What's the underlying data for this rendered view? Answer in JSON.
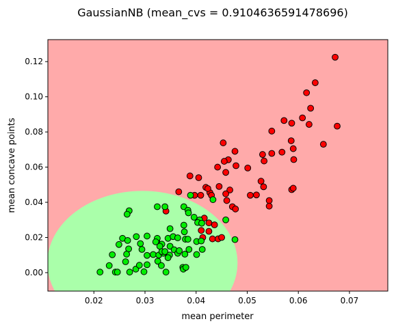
{
  "chart_data": {
    "type": "scatter",
    "title": "GaussianNB (mean_cvs = 0.9104636591478696)",
    "xlabel": "mean perimeter",
    "ylabel": "mean concave points",
    "xlim": [
      0.011,
      0.0775
    ],
    "ylim": [
      -0.0105,
      0.1325
    ],
    "xticks": [
      0.02,
      0.03,
      0.04,
      0.05,
      0.06,
      0.07
    ],
    "xtick_labels": [
      "0.02",
      "0.03",
      "0.04",
      "0.05",
      "0.06",
      "0.07"
    ],
    "yticks": [
      0.0,
      0.02,
      0.04,
      0.06,
      0.08,
      0.1,
      0.12
    ],
    "ytick_labels": [
      "0.00",
      "0.02",
      "0.04",
      "0.06",
      "0.08",
      "0.10",
      "0.12"
    ],
    "grid": false,
    "decision_region": {
      "background_color": "#ffaaaa",
      "region_color": "#aaffaa",
      "ellipse_center": [
        0.0295,
        0.0055
      ],
      "ellipse_semi_axes": [
        0.0186,
        0.041
      ]
    },
    "series": [
      {
        "color": "#ff0000",
        "edge_color": "#000000",
        "points": [
          [
            0.0672,
            0.1225
          ],
          [
            0.0633,
            0.108
          ],
          [
            0.0616,
            0.1023
          ],
          [
            0.0624,
            0.0935
          ],
          [
            0.0608,
            0.088
          ],
          [
            0.0621,
            0.0843
          ],
          [
            0.0676,
            0.0833
          ],
          [
            0.0572,
            0.0865
          ],
          [
            0.0587,
            0.085
          ],
          [
            0.0548,
            0.0805
          ],
          [
            0.0649,
            0.073
          ],
          [
            0.0586,
            0.075
          ],
          [
            0.059,
            0.0705
          ],
          [
            0.0568,
            0.0685
          ],
          [
            0.0548,
            0.0678
          ],
          [
            0.053,
            0.0672
          ],
          [
            0.0533,
            0.0635
          ],
          [
            0.0591,
            0.0643
          ],
          [
            0.0476,
            0.069
          ],
          [
            0.0453,
            0.0738
          ],
          [
            0.0463,
            0.0642
          ],
          [
            0.0455,
            0.0633
          ],
          [
            0.0478,
            0.0608
          ],
          [
            0.0442,
            0.06
          ],
          [
            0.0458,
            0.057
          ],
          [
            0.0501,
            0.0595
          ],
          [
            0.0527,
            0.052
          ],
          [
            0.0532,
            0.0488
          ],
          [
            0.0543,
            0.041
          ],
          [
            0.0543,
            0.0378
          ],
          [
            0.0587,
            0.0472
          ],
          [
            0.059,
            0.048
          ],
          [
            0.0506,
            0.044
          ],
          [
            0.0518,
            0.0442
          ],
          [
            0.0466,
            0.047
          ],
          [
            0.0445,
            0.049
          ],
          [
            0.0458,
            0.0448
          ],
          [
            0.046,
            0.041
          ],
          [
            0.0427,
            0.0455
          ],
          [
            0.0419,
            0.0485
          ],
          [
            0.043,
            0.044
          ],
          [
            0.0405,
            0.054
          ],
          [
            0.0388,
            0.055
          ],
          [
            0.0366,
            0.046
          ],
          [
            0.0397,
            0.044
          ],
          [
            0.0409,
            0.044
          ],
          [
            0.0423,
            0.0478
          ],
          [
            0.0471,
            0.0375
          ],
          [
            0.0477,
            0.0362
          ],
          [
            0.0416,
            0.031
          ],
          [
            0.0425,
            0.0283
          ],
          [
            0.0436,
            0.0272
          ],
          [
            0.041,
            0.024
          ],
          [
            0.0425,
            0.0235
          ],
          [
            0.0413,
            0.02
          ],
          [
            0.0432,
            0.0192
          ],
          [
            0.0443,
            0.0192
          ],
          [
            0.045,
            0.02
          ],
          [
            0.0341,
            0.035
          ]
        ]
      },
      {
        "color": "#00ee00",
        "edge_color": "#000000",
        "points": [
          [
            0.0269,
            0.0352
          ],
          [
            0.0265,
            0.0332
          ],
          [
            0.0324,
            0.0375
          ],
          [
            0.0339,
            0.0375
          ],
          [
            0.0376,
            0.0375
          ],
          [
            0.0384,
            0.0355
          ],
          [
            0.0385,
            0.034
          ],
          [
            0.0389,
            0.044
          ],
          [
            0.0433,
            0.0415
          ],
          [
            0.0458,
            0.03
          ],
          [
            0.0407,
            0.03
          ],
          [
            0.0403,
            0.0285
          ],
          [
            0.0396,
            0.0315
          ],
          [
            0.0376,
            0.027
          ],
          [
            0.0411,
            0.0281
          ],
          [
            0.0349,
            0.025
          ],
          [
            0.0377,
            0.0232
          ],
          [
            0.0256,
            0.0195
          ],
          [
            0.0249,
            0.016
          ],
          [
            0.0266,
            0.0183
          ],
          [
            0.0268,
            0.0135
          ],
          [
            0.0264,
            0.0105
          ],
          [
            0.0283,
            0.0205
          ],
          [
            0.0304,
            0.0208
          ],
          [
            0.0291,
            0.0165
          ],
          [
            0.0294,
            0.0132
          ],
          [
            0.0323,
            0.018
          ],
          [
            0.0324,
            0.0195
          ],
          [
            0.0333,
            0.0162
          ],
          [
            0.0345,
            0.0195
          ],
          [
            0.0355,
            0.0205
          ],
          [
            0.0364,
            0.0198
          ],
          [
            0.0379,
            0.019
          ],
          [
            0.0384,
            0.019
          ],
          [
            0.0401,
            0.0177
          ],
          [
            0.041,
            0.018
          ],
          [
            0.0476,
            0.0188
          ],
          [
            0.0236,
            0.0102
          ],
          [
            0.0262,
            0.0062
          ],
          [
            0.023,
            0.004
          ],
          [
            0.0242,
            0.0003
          ],
          [
            0.0246,
            0.0003
          ],
          [
            0.0212,
            0.0003
          ],
          [
            0.027,
            0.0003
          ],
          [
            0.0282,
            0.002
          ],
          [
            0.0298,
            0.0005
          ],
          [
            0.0289,
            0.0042
          ],
          [
            0.0304,
            0.0045
          ],
          [
            0.0304,
            0.0098
          ],
          [
            0.0316,
            0.0103
          ],
          [
            0.0325,
            0.0065
          ],
          [
            0.0327,
            0.01
          ],
          [
            0.0336,
            0.011
          ],
          [
            0.0348,
            0.01
          ],
          [
            0.0345,
            0.0085
          ],
          [
            0.0349,
            0.015
          ],
          [
            0.0357,
            0.013
          ],
          [
            0.0364,
            0.011
          ],
          [
            0.0367,
            0.0125
          ],
          [
            0.0378,
            0.0105
          ],
          [
            0.0386,
            0.0132
          ],
          [
            0.0401,
            0.0103
          ],
          [
            0.0412,
            0.0132
          ],
          [
            0.0374,
            0.003
          ],
          [
            0.0375,
            0.002
          ],
          [
            0.038,
            0.003
          ],
          [
            0.0341,
            0.0003
          ],
          [
            0.0332,
            0.004
          ],
          [
            0.0321,
            0.0175
          ],
          [
            0.0329,
            0.015
          ],
          [
            0.0333,
            0.012
          ],
          [
            0.0339,
            0.012
          ]
        ]
      }
    ]
  }
}
